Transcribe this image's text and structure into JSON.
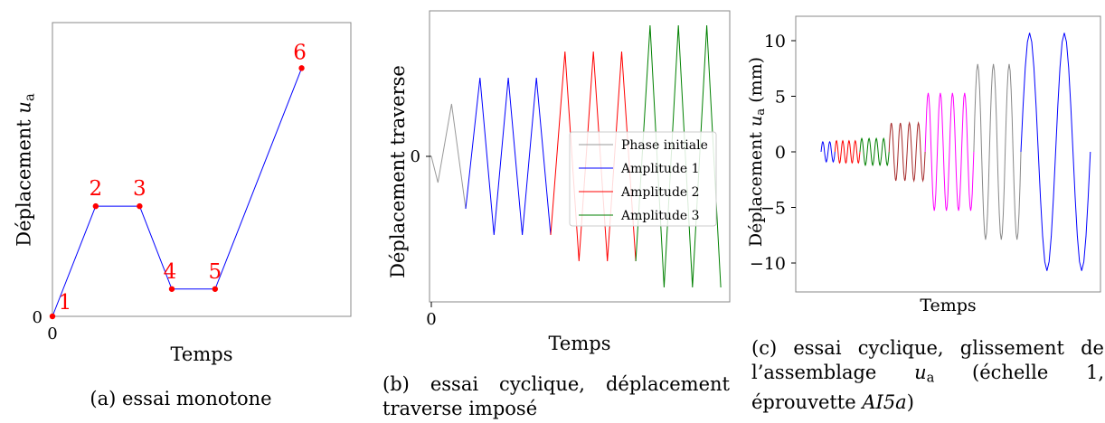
{
  "panels": {
    "a": {
      "caption": "(a) essai monotone",
      "xlabel": "Temps",
      "ylabel_prefix": "Déplacement ",
      "ylabel_var": "u",
      "ylabel_sub": "a"
    },
    "b": {
      "caption": "(b) essai cyclique, déplacement traverse imposé",
      "xlabel": "Temps",
      "ylabel": "Déplacement traverse"
    },
    "c": {
      "caption_pre": "(c) essai cyclique, glissement de l’assemblage ",
      "caption_var": "u",
      "caption_sub": "a",
      "caption_post": " (échelle 1, éprouvette ",
      "caption_spec": "AI5a",
      "caption_end": ")",
      "xlabel": "Temps",
      "ylabel_prefix": "Déplacement ",
      "ylabel_var": "u",
      "ylabel_sub": "a",
      "ylabel_suffix": " (mm)"
    }
  },
  "chart_data": [
    {
      "type": "line",
      "title": "",
      "xlabel": "Temps",
      "ylabel": "Déplacement u_a",
      "x_ticks": [
        "0"
      ],
      "y_ticks": [
        "0"
      ],
      "xlim": [
        0,
        1
      ],
      "ylim": [
        0,
        1
      ],
      "grid": false,
      "colors": {
        "line": "#0000ff",
        "points": "#ff0000",
        "labels": "#ff0000"
      },
      "points": [
        {
          "label": "1",
          "x": 0.0,
          "y": 0.0
        },
        {
          "label": "2",
          "x": 0.145,
          "y": 0.375
        },
        {
          "label": "3",
          "x": 0.292,
          "y": 0.375
        },
        {
          "label": "4",
          "x": 0.4,
          "y": 0.093
        },
        {
          "label": "5",
          "x": 0.545,
          "y": 0.093
        },
        {
          "label": "6",
          "x": 0.835,
          "y": 0.845
        }
      ]
    },
    {
      "type": "line",
      "title": "",
      "xlabel": "Temps",
      "ylabel": "Déplacement traverse",
      "x_ticks": [
        "0"
      ],
      "y_ticks": [
        "0"
      ],
      "xlim": [
        0,
        1
      ],
      "ylim": [
        -1.1,
        1.1
      ],
      "legend_position": "right",
      "grid": false,
      "series": [
        {
          "name": "Phase initiale",
          "color": "#999999",
          "x": [
            0.0,
            0.022,
            0.068,
            0.115
          ],
          "y": [
            0.0,
            -0.2,
            0.4,
            -0.4
          ]
        },
        {
          "name": "Amplitude 1",
          "color": "#0000ff",
          "x": [
            0.115,
            0.163,
            0.21,
            0.258,
            0.305,
            0.352,
            0.4
          ],
          "y": [
            -0.4,
            0.6,
            -0.6,
            0.6,
            -0.6,
            0.6,
            -0.6
          ]
        },
        {
          "name": "Amplitude 2",
          "color": "#ff0000",
          "x": [
            0.4,
            0.448,
            0.495,
            0.543,
            0.59,
            0.638,
            0.685
          ],
          "y": [
            -0.6,
            0.8,
            -0.8,
            0.8,
            -0.8,
            0.8,
            -0.8
          ]
        },
        {
          "name": "Amplitude 3",
          "color": "#008000",
          "x": [
            0.685,
            0.733,
            0.78,
            0.828,
            0.875,
            0.923,
            0.97
          ],
          "y": [
            -0.8,
            1.0,
            -1.0,
            1.0,
            -1.0,
            1.0,
            -1.0
          ]
        }
      ]
    },
    {
      "type": "line",
      "title": "",
      "xlabel": "Temps",
      "ylabel": "Déplacement u_a (mm)",
      "y_ticks": [
        "10",
        "5",
        "0",
        "−5",
        "−10"
      ],
      "ylim": [
        -12.4,
        12.4
      ],
      "xlim": [
        0,
        1
      ],
      "grid": false,
      "series": [
        {
          "name": "",
          "color": "#0000ff",
          "amplitude": 0.9,
          "cycles": 2,
          "x_start": 0.0,
          "x_end": 0.05
        },
        {
          "name": "",
          "color": "#ff0000",
          "amplitude": 1.0,
          "cycles": 4,
          "x_start": 0.05,
          "x_end": 0.14
        },
        {
          "name": "",
          "color": "#008000",
          "amplitude": 1.2,
          "cycles": 4,
          "x_start": 0.14,
          "x_end": 0.245
        },
        {
          "name": "",
          "color": "#a52a2a",
          "amplitude": 2.6,
          "cycles": 4,
          "x_start": 0.245,
          "x_end": 0.375
        },
        {
          "name": "",
          "color": "#ff00ff",
          "amplitude": 5.3,
          "cycles": 4,
          "x_start": 0.375,
          "x_end": 0.55
        },
        {
          "name": "",
          "color": "#888888",
          "amplitude": 7.9,
          "cycles": 3,
          "x_start": 0.55,
          "x_end": 0.72
        },
        {
          "name": "",
          "color": "#0000ff",
          "amplitude": 10.7,
          "cycles": 2,
          "x_start": 0.72,
          "x_end": 0.97
        }
      ]
    }
  ]
}
